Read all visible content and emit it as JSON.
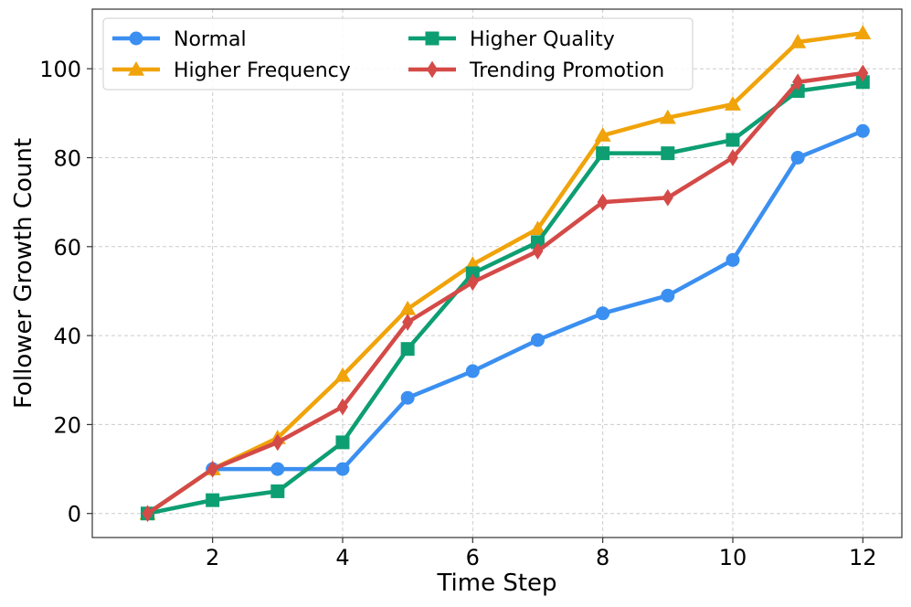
{
  "chart_data": {
    "type": "line",
    "title": "",
    "xlabel": "Time Step",
    "ylabel": "Follower Growth Count",
    "x": [
      1,
      2,
      3,
      4,
      5,
      6,
      7,
      8,
      9,
      10,
      11,
      12
    ],
    "xticks": [
      2,
      4,
      6,
      8,
      10,
      12
    ],
    "yticks": [
      0,
      20,
      40,
      60,
      80,
      100
    ],
    "xlim": [
      0.15,
      12.6
    ],
    "ylim": [
      -5.4,
      113.4
    ],
    "grid": true,
    "legend_position": "top-left",
    "series": [
      {
        "name": "Normal",
        "color": "#3b8ff0",
        "marker": "circle",
        "values": [
          0,
          10,
          10,
          10,
          26,
          32,
          39,
          45,
          49,
          57,
          80,
          86
        ]
      },
      {
        "name": "Higher Frequency",
        "color": "#f0a30a",
        "marker": "triangle",
        "values": [
          0,
          10,
          17,
          31,
          46,
          56,
          64,
          85,
          89,
          92,
          106,
          108
        ]
      },
      {
        "name": "Higher Quality",
        "color": "#0d9e72",
        "marker": "square",
        "values": [
          0,
          3,
          5,
          16,
          37,
          54,
          61,
          81,
          81,
          84,
          95,
          97
        ]
      },
      {
        "name": "Trending Promotion",
        "color": "#d44a47",
        "marker": "diamond",
        "values": [
          0,
          10,
          16,
          24,
          43,
          52,
          59,
          70,
          71,
          80,
          97,
          99
        ]
      }
    ]
  }
}
